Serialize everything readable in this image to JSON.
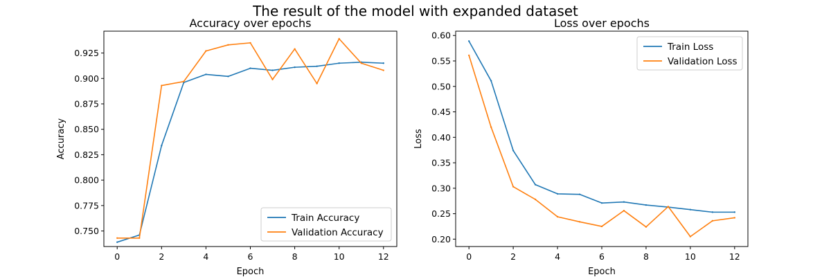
{
  "figure": {
    "suptitle": "The result of the model with expanded dataset"
  },
  "chart_data": [
    {
      "type": "line",
      "title": "Accuracy over epochs",
      "xlabel": "Epoch",
      "ylabel": "Accuracy",
      "xlim": [
        -0.6,
        12.6
      ],
      "ylim": [
        0.7347,
        0.9465
      ],
      "xticks": [
        0,
        2,
        4,
        6,
        8,
        10,
        12
      ],
      "xtick_labels": [
        "0",
        "2",
        "4",
        "6",
        "8",
        "10",
        "12"
      ],
      "yticks": [
        0.75,
        0.775,
        0.8,
        0.825,
        0.85,
        0.875,
        0.9,
        0.925
      ],
      "ytick_labels": [
        "0.750",
        "0.775",
        "0.800",
        "0.825",
        "0.850",
        "0.875",
        "0.900",
        "0.925"
      ],
      "legend_position": "lower right",
      "grid": false,
      "x": [
        0,
        1,
        2,
        3,
        4,
        5,
        6,
        7,
        8,
        9,
        10,
        11,
        12
      ],
      "series": [
        {
          "name": "Train Accuracy",
          "color": "#1f77b4",
          "values": [
            0.739,
            0.746,
            0.834,
            0.896,
            0.904,
            0.902,
            0.91,
            0.908,
            0.911,
            0.912,
            0.915,
            0.916,
            0.915
          ]
        },
        {
          "name": "Validation Accuracy",
          "color": "#ff7f0e",
          "values": [
            0.743,
            0.743,
            0.893,
            0.897,
            0.927,
            0.933,
            0.935,
            0.899,
            0.929,
            0.895,
            0.939,
            0.915,
            0.908
          ]
        }
      ]
    },
    {
      "type": "line",
      "title": "Loss over epochs",
      "xlabel": "Epoch",
      "ylabel": "Loss",
      "xlim": [
        -0.6,
        12.6
      ],
      "ylim": [
        0.1855,
        0.6085
      ],
      "xticks": [
        0,
        2,
        4,
        6,
        8,
        10,
        12
      ],
      "xtick_labels": [
        "0",
        "2",
        "4",
        "6",
        "8",
        "10",
        "12"
      ],
      "yticks": [
        0.2,
        0.25,
        0.3,
        0.35,
        0.4,
        0.45,
        0.5,
        0.55,
        0.6
      ],
      "ytick_labels": [
        "0.20",
        "0.25",
        "0.30",
        "0.35",
        "0.40",
        "0.45",
        "0.50",
        "0.55",
        "0.60"
      ],
      "legend_position": "upper right",
      "grid": false,
      "x": [
        0,
        1,
        2,
        3,
        4,
        5,
        6,
        7,
        8,
        9,
        10,
        11,
        12
      ],
      "series": [
        {
          "name": "Train Loss",
          "color": "#1f77b4",
          "values": [
            0.589,
            0.511,
            0.374,
            0.307,
            0.289,
            0.288,
            0.271,
            0.273,
            0.267,
            0.263,
            0.258,
            0.253,
            0.253
          ]
        },
        {
          "name": "Validation Loss",
          "color": "#ff7f0e",
          "values": [
            0.561,
            0.42,
            0.303,
            0.278,
            0.244,
            0.234,
            0.225,
            0.256,
            0.224,
            0.264,
            0.205,
            0.236,
            0.242
          ]
        }
      ]
    }
  ]
}
